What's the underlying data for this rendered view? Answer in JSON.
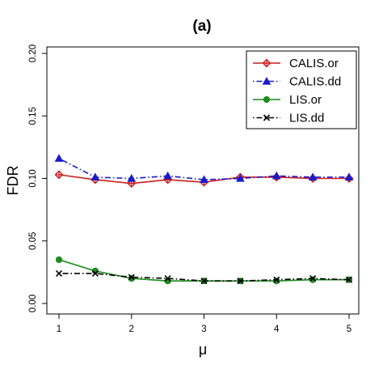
{
  "chart_data": {
    "type": "line",
    "title": "(a)",
    "xlabel": "μ",
    "ylabel": "FDR",
    "xlim": [
      1,
      5
    ],
    "ylim": [
      0,
      0.2
    ],
    "xticks": [
      1,
      2,
      3,
      4,
      5
    ],
    "yticks": [
      0.0,
      0.05,
      0.1,
      0.15,
      0.2
    ],
    "ytick_labels": [
      "0.00",
      "0.05",
      "0.10",
      "0.15",
      "0.20"
    ],
    "grid": false,
    "legend_position": "top-right",
    "x": [
      1,
      1.5,
      2,
      2.5,
      3,
      3.5,
      4,
      4.5,
      5
    ],
    "series": [
      {
        "name": "CALIS.or",
        "color": "#cc1f1f",
        "marker": "diamond-open",
        "line": "solid",
        "values": [
          0.103,
          0.099,
          0.096,
          0.099,
          0.097,
          0.101,
          0.101,
          0.1,
          0.1
        ]
      },
      {
        "name": "CALIS.dd",
        "color": "#1a1acc",
        "marker": "triangle",
        "line": "dotdash",
        "values": [
          0.116,
          0.101,
          0.1,
          0.102,
          0.099,
          0.1,
          0.102,
          0.101,
          0.101
        ]
      },
      {
        "name": "LIS.or",
        "color": "#1c8c1c",
        "marker": "circle",
        "line": "solid",
        "values": [
          0.035,
          0.026,
          0.02,
          0.018,
          0.018,
          0.018,
          0.018,
          0.019,
          0.019
        ]
      },
      {
        "name": "LIS.dd",
        "color": "#000000",
        "marker": "x",
        "line": "dotdash",
        "values": [
          0.024,
          0.024,
          0.021,
          0.02,
          0.018,
          0.018,
          0.019,
          0.02,
          0.019
        ]
      }
    ]
  }
}
